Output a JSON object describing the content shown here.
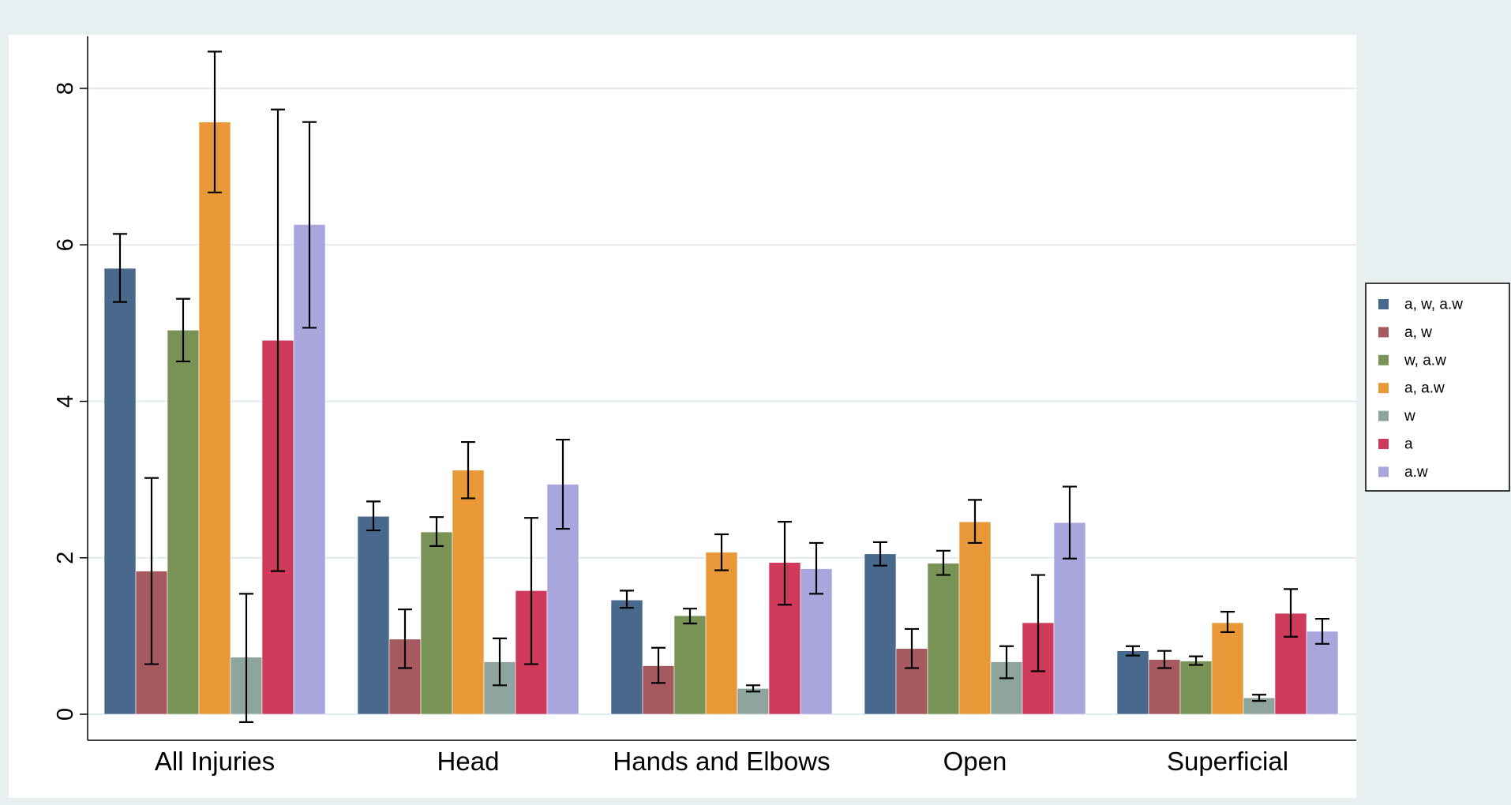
{
  "chart_data": {
    "type": "bar",
    "title": "",
    "xlabel": "",
    "ylabel": "",
    "ylim": [
      -0.3,
      8.9
    ],
    "yticks": [
      0,
      2,
      4,
      6,
      8
    ],
    "grid": true,
    "legend_position": "right",
    "categories": [
      "All Injuries",
      "Head",
      "Hands and Elbows",
      "Open",
      "Superficial"
    ],
    "series": [
      {
        "name": "a, w, a.w",
        "color": "#48698b",
        "values": [
          5.7,
          2.53,
          1.46,
          2.05,
          0.81
        ],
        "ci_low": [
          5.27,
          2.35,
          1.36,
          1.9,
          0.75
        ],
        "ci_high": [
          6.14,
          2.72,
          1.58,
          2.2,
          0.87
        ]
      },
      {
        "name": "a, w",
        "color": "#a65a60",
        "values": [
          1.83,
          0.96,
          0.62,
          0.84,
          0.7
        ],
        "ci_low": [
          0.64,
          0.59,
          0.4,
          0.59,
          0.59
        ],
        "ci_high": [
          3.02,
          1.34,
          0.85,
          1.09,
          0.81
        ]
      },
      {
        "name": "w, a.w",
        "color": "#789355",
        "values": [
          4.91,
          2.33,
          1.26,
          1.93,
          0.68
        ],
        "ci_low": [
          4.51,
          2.15,
          1.16,
          1.78,
          0.63
        ],
        "ci_high": [
          5.31,
          2.52,
          1.35,
          2.09,
          0.74
        ]
      },
      {
        "name": "a, a.w",
        "color": "#e99837",
        "values": [
          7.57,
          3.12,
          2.07,
          2.46,
          1.17
        ],
        "ci_low": [
          6.67,
          2.76,
          1.84,
          2.19,
          1.05
        ],
        "ci_high": [
          8.47,
          3.48,
          2.3,
          2.74,
          1.31
        ]
      },
      {
        "name": "w",
        "color": "#8da59c",
        "values": [
          0.73,
          0.67,
          0.33,
          0.67,
          0.21
        ],
        "ci_low": [
          -0.1,
          0.37,
          0.29,
          0.46,
          0.17
        ],
        "ci_high": [
          1.54,
          0.97,
          0.37,
          0.87,
          0.25
        ]
      },
      {
        "name": "a",
        "color": "#cf3a5b",
        "values": [
          4.78,
          1.58,
          1.94,
          1.17,
          1.29
        ],
        "ci_low": [
          1.83,
          0.64,
          1.4,
          0.55,
          0.99
        ],
        "ci_high": [
          7.73,
          2.51,
          2.46,
          1.78,
          1.6
        ]
      },
      {
        "name": "a.w",
        "color": "#a9a6de",
        "values": [
          6.26,
          2.94,
          1.86,
          2.45,
          1.06
        ],
        "ci_low": [
          4.94,
          2.37,
          1.54,
          1.99,
          0.9
        ],
        "ci_high": [
          7.57,
          3.51,
          2.19,
          2.91,
          1.22
        ]
      }
    ]
  }
}
